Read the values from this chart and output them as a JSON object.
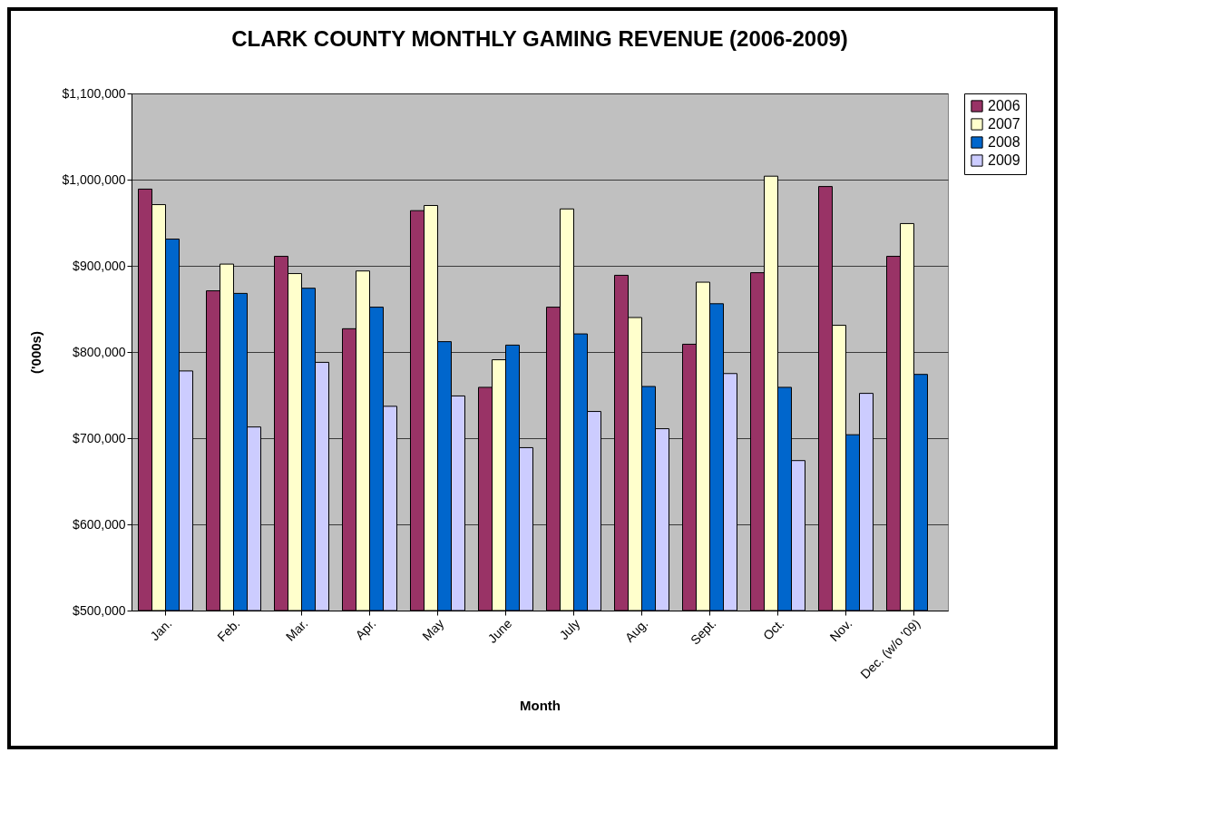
{
  "chart_data": {
    "type": "bar",
    "title": "CLARK COUNTY MONTHLY GAMING  REVENUE (2006-2009)",
    "xlabel": "Month",
    "ylabel": "('000s)",
    "categories": [
      "Jan.",
      "Feb.",
      "Mar.",
      "Apr.",
      "May",
      "June",
      "July",
      "Aug.",
      "Sept.",
      "Oct.",
      "Nov.",
      "Dec. (w/o '09)"
    ],
    "series": [
      {
        "name": "2006",
        "color": "#993366",
        "values": [
          989000,
          871000,
          911000,
          827000,
          964000,
          759000,
          852000,
          889000,
          809000,
          892000,
          992000,
          911000
        ]
      },
      {
        "name": "2007",
        "color": "#ffffcc",
        "values": [
          971000,
          902000,
          891000,
          894000,
          970000,
          791000,
          966000,
          840000,
          881000,
          1004000,
          831000,
          949000
        ]
      },
      {
        "name": "2008",
        "color": "#0066cc",
        "values": [
          931000,
          868000,
          874000,
          852000,
          812000,
          808000,
          821000,
          760000,
          856000,
          759000,
          704000,
          774000
        ]
      },
      {
        "name": "2009",
        "color": "#ccccff",
        "values": [
          778000,
          713000,
          788000,
          737000,
          749000,
          689000,
          731000,
          711000,
          775000,
          674000,
          752000,
          null
        ]
      }
    ],
    "ylim": [
      500000,
      1100000
    ],
    "yticks": [
      {
        "value": 500000,
        "label": "$500,000"
      },
      {
        "value": 600000,
        "label": "$600,000"
      },
      {
        "value": 700000,
        "label": "$700,000"
      },
      {
        "value": 800000,
        "label": "$800,000"
      },
      {
        "value": 900000,
        "label": "$900,000"
      },
      {
        "value": 1000000,
        "label": "$1,000,000"
      },
      {
        "value": 1100000,
        "label": "$1,100,000"
      }
    ],
    "grid": "y",
    "legend": "right"
  }
}
